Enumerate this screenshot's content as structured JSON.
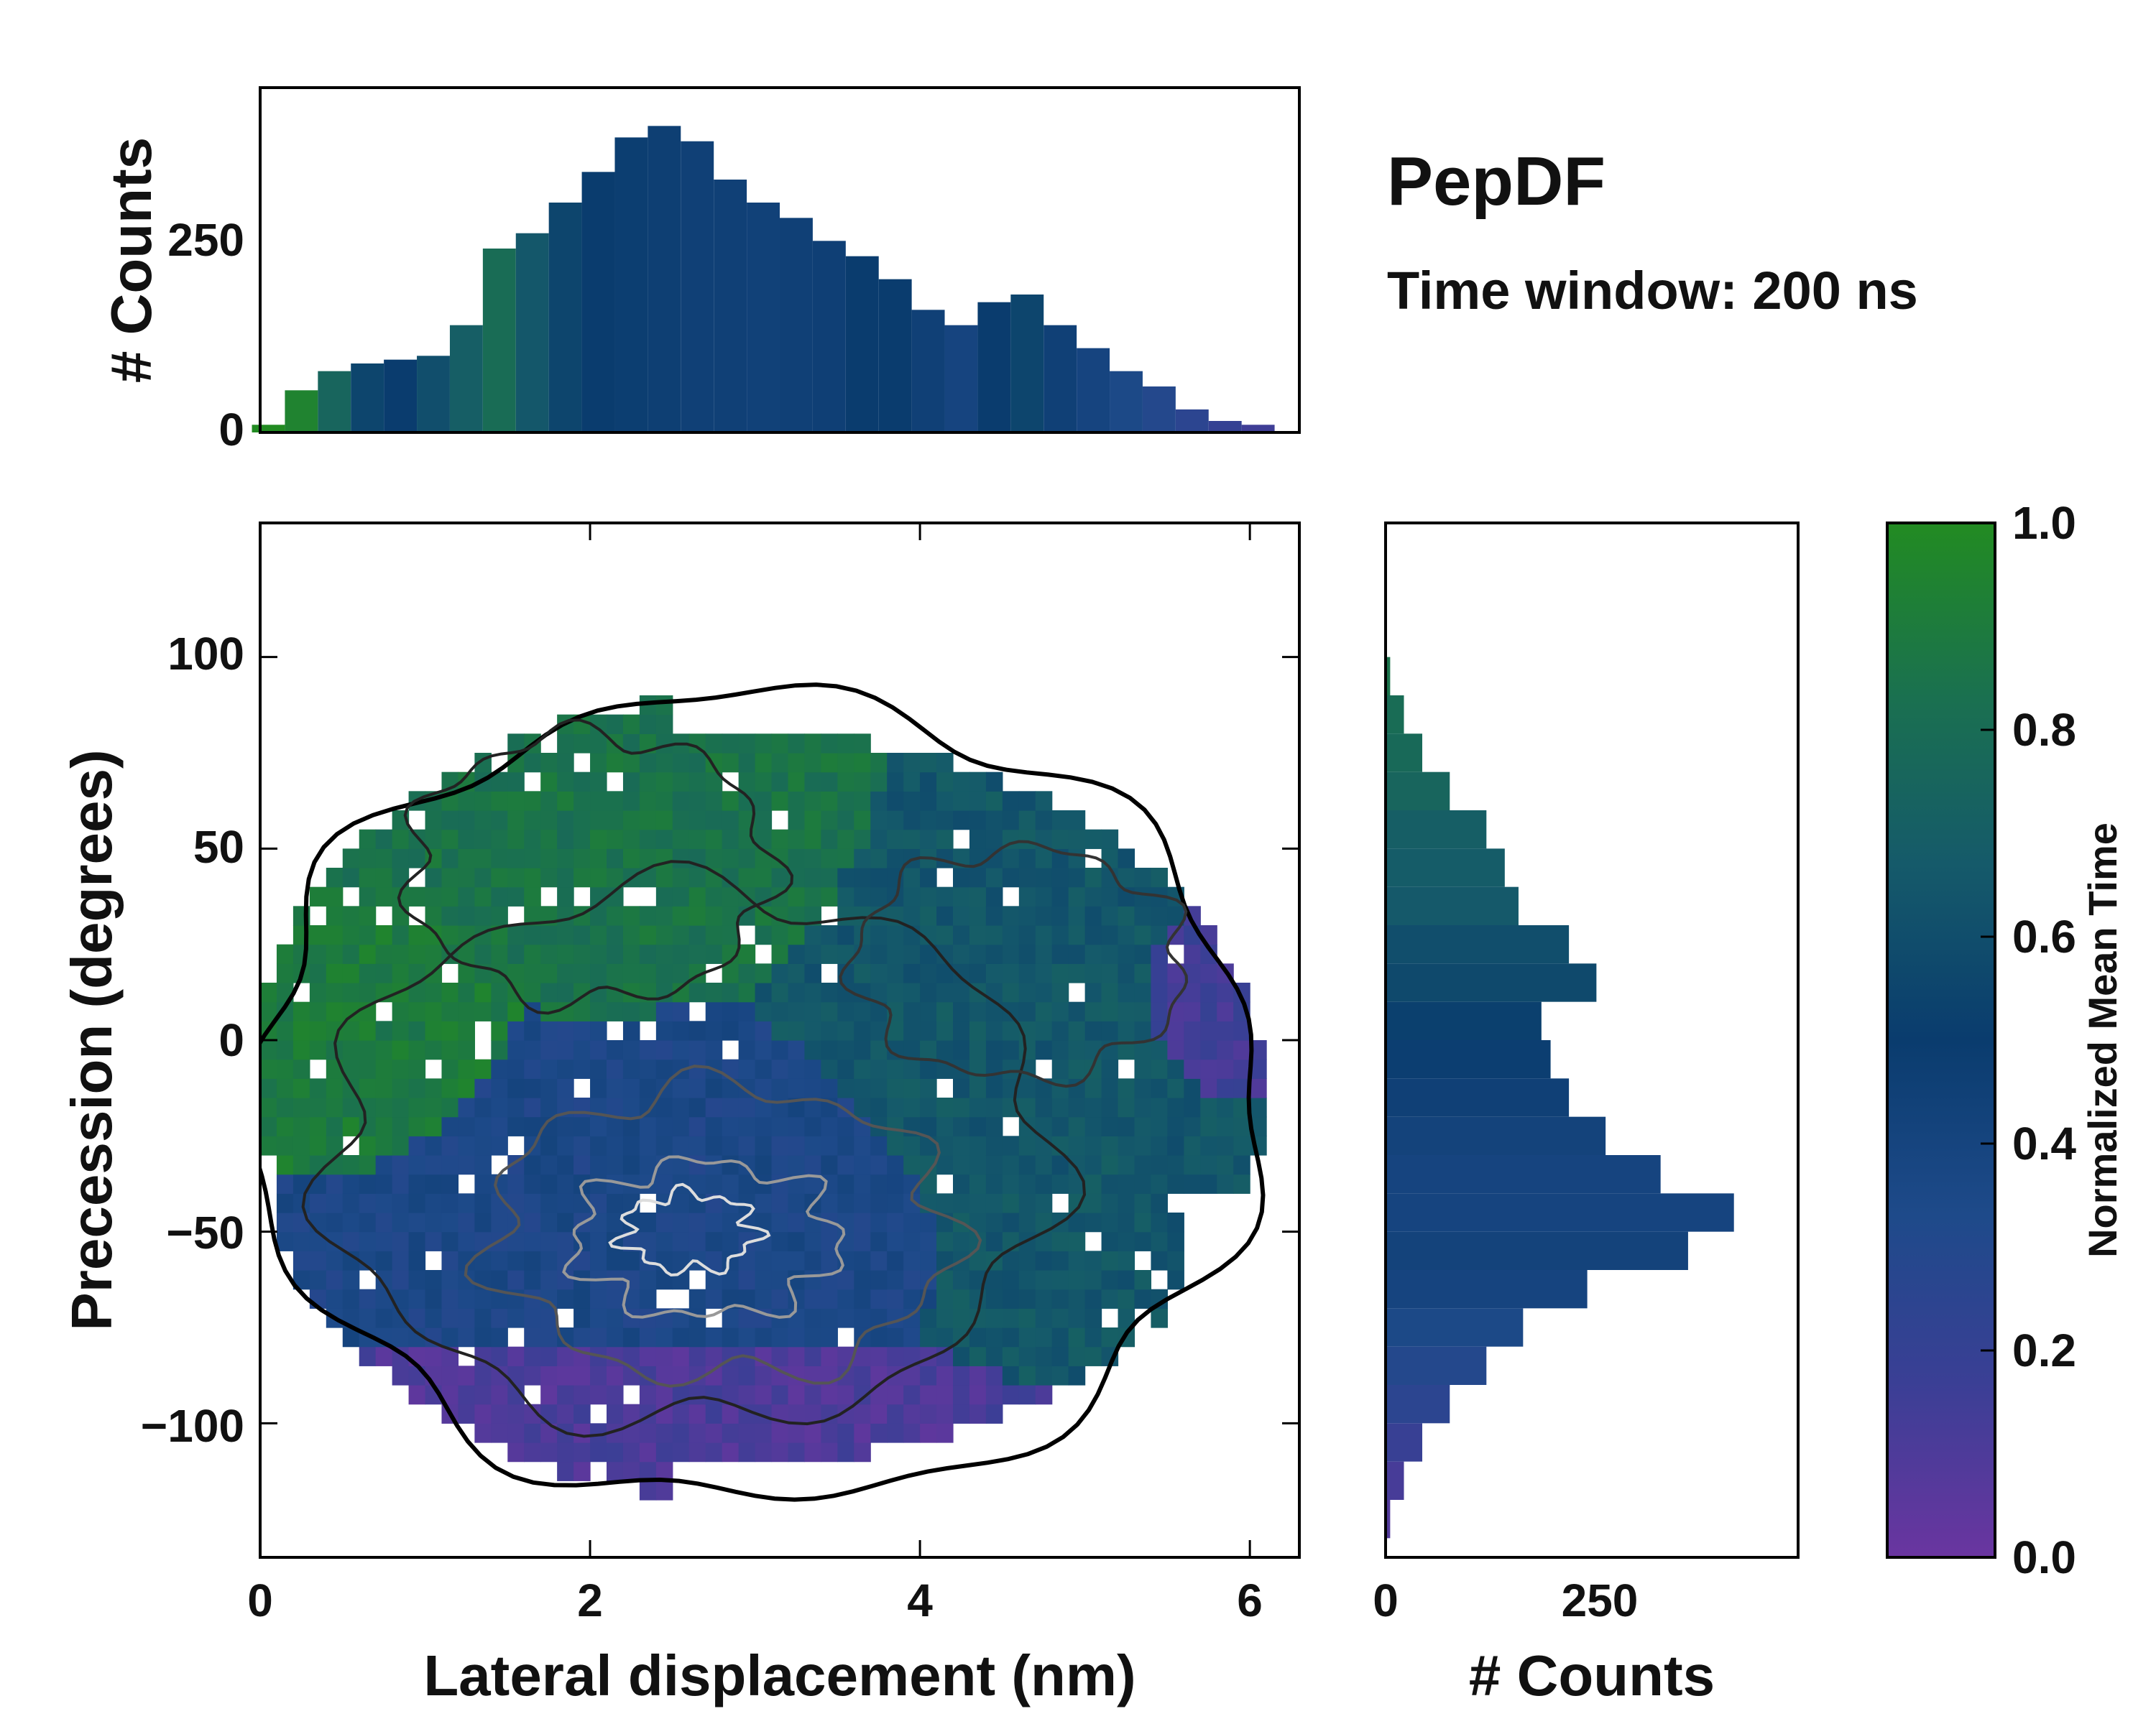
{
  "chart_data": {
    "type": "heatmap",
    "title": "PepDF",
    "subtitle": "Time window: 200 ns",
    "xlabel": "Lateral displacement (nm)",
    "ylabel": "Precession (degrees)",
    "xlim": [
      0,
      6.3
    ],
    "ylim": [
      -135,
      135
    ],
    "x_ticks": [
      "0",
      "2",
      "4",
      "6"
    ],
    "y_ticks": [
      "−100",
      "−50",
      "0",
      "50",
      "100"
    ],
    "colorbar": {
      "label": "Normalized Mean Time",
      "range": [
        0.0,
        1.0
      ],
      "ticks": [
        "0.0",
        "0.2",
        "0.4",
        "0.6",
        "0.8",
        "1.0"
      ],
      "colors": [
        "#6a35a0",
        "#3a3f95",
        "#1e4a8a",
        "#0a3c6e",
        "#155a6a",
        "#1a7050",
        "#228b22"
      ]
    },
    "heatmap_description_regions": [
      {
        "name": "early (purple)",
        "x": [
          0.8,
          4.4
        ],
        "y": [
          -130,
          -85
        ],
        "time": 0.1
      },
      {
        "name": "early (purple) right",
        "x": [
          5.3,
          6.2
        ],
        "y": [
          -10,
          30
        ],
        "time": 0.15
      },
      {
        "name": "middle (blue)",
        "x": [
          0.5,
          4.5
        ],
        "y": [
          -75,
          -5
        ],
        "time": 0.35
      },
      {
        "name": "late (green)",
        "x": [
          1.0,
          3.5
        ],
        "y": [
          20,
          95
        ],
        "time": 0.85
      },
      {
        "name": "late (green) left",
        "x": [
          0.0,
          1.2
        ],
        "y": [
          -30,
          25
        ],
        "time": 0.9
      },
      {
        "name": "mid-late (teal)",
        "x": [
          3.4,
          5.8
        ],
        "y": [
          -70,
          70
        ],
        "time": 0.65
      }
    ],
    "top_histogram": {
      "ylabel": "# Counts",
      "y_ticks": [
        "0",
        "250"
      ],
      "ylim": [
        0,
        450
      ],
      "x": [
        0.05,
        0.25,
        0.45,
        0.65,
        0.85,
        1.05,
        1.25,
        1.45,
        1.65,
        1.85,
        2.05,
        2.25,
        2.45,
        2.65,
        2.85,
        3.05,
        3.25,
        3.45,
        3.65,
        3.85,
        4.05,
        4.25,
        4.45,
        4.65,
        4.85,
        5.05,
        5.25,
        5.45,
        5.65,
        5.85,
        6.05,
        6.25
      ],
      "values": [
        10,
        55,
        80,
        90,
        95,
        100,
        140,
        240,
        260,
        300,
        340,
        385,
        400,
        380,
        330,
        300,
        280,
        250,
        230,
        200,
        160,
        140,
        170,
        180,
        140,
        110,
        80,
        60,
        30,
        15,
        10,
        0
      ],
      "time": [
        1.0,
        0.95,
        0.75,
        0.55,
        0.5,
        0.6,
        0.7,
        0.8,
        0.65,
        0.55,
        0.5,
        0.48,
        0.47,
        0.45,
        0.45,
        0.44,
        0.45,
        0.46,
        0.5,
        0.5,
        0.45,
        0.4,
        0.5,
        0.55,
        0.45,
        0.4,
        0.35,
        0.3,
        0.25,
        0.2,
        0.15,
        0.1
      ]
    },
    "right_histogram": {
      "xlabel": "# Counts",
      "x_ticks": [
        "0",
        "250"
      ],
      "xlim": [
        0,
        450
      ],
      "y": [
        95,
        85,
        75,
        65,
        55,
        45,
        35,
        25,
        15,
        5,
        -5,
        -15,
        -25,
        -35,
        -45,
        -55,
        -65,
        -75,
        -85,
        -95,
        -105,
        -115,
        -125
      ],
      "values": [
        5,
        20,
        40,
        70,
        110,
        130,
        145,
        200,
        230,
        170,
        180,
        200,
        240,
        300,
        380,
        330,
        220,
        150,
        110,
        70,
        40,
        20,
        5
      ],
      "time": [
        0.85,
        0.8,
        0.78,
        0.75,
        0.7,
        0.68,
        0.66,
        0.6,
        0.57,
        0.52,
        0.48,
        0.45,
        0.42,
        0.4,
        0.4,
        0.42,
        0.4,
        0.35,
        0.3,
        0.25,
        0.18,
        0.12,
        0.08
      ]
    }
  }
}
